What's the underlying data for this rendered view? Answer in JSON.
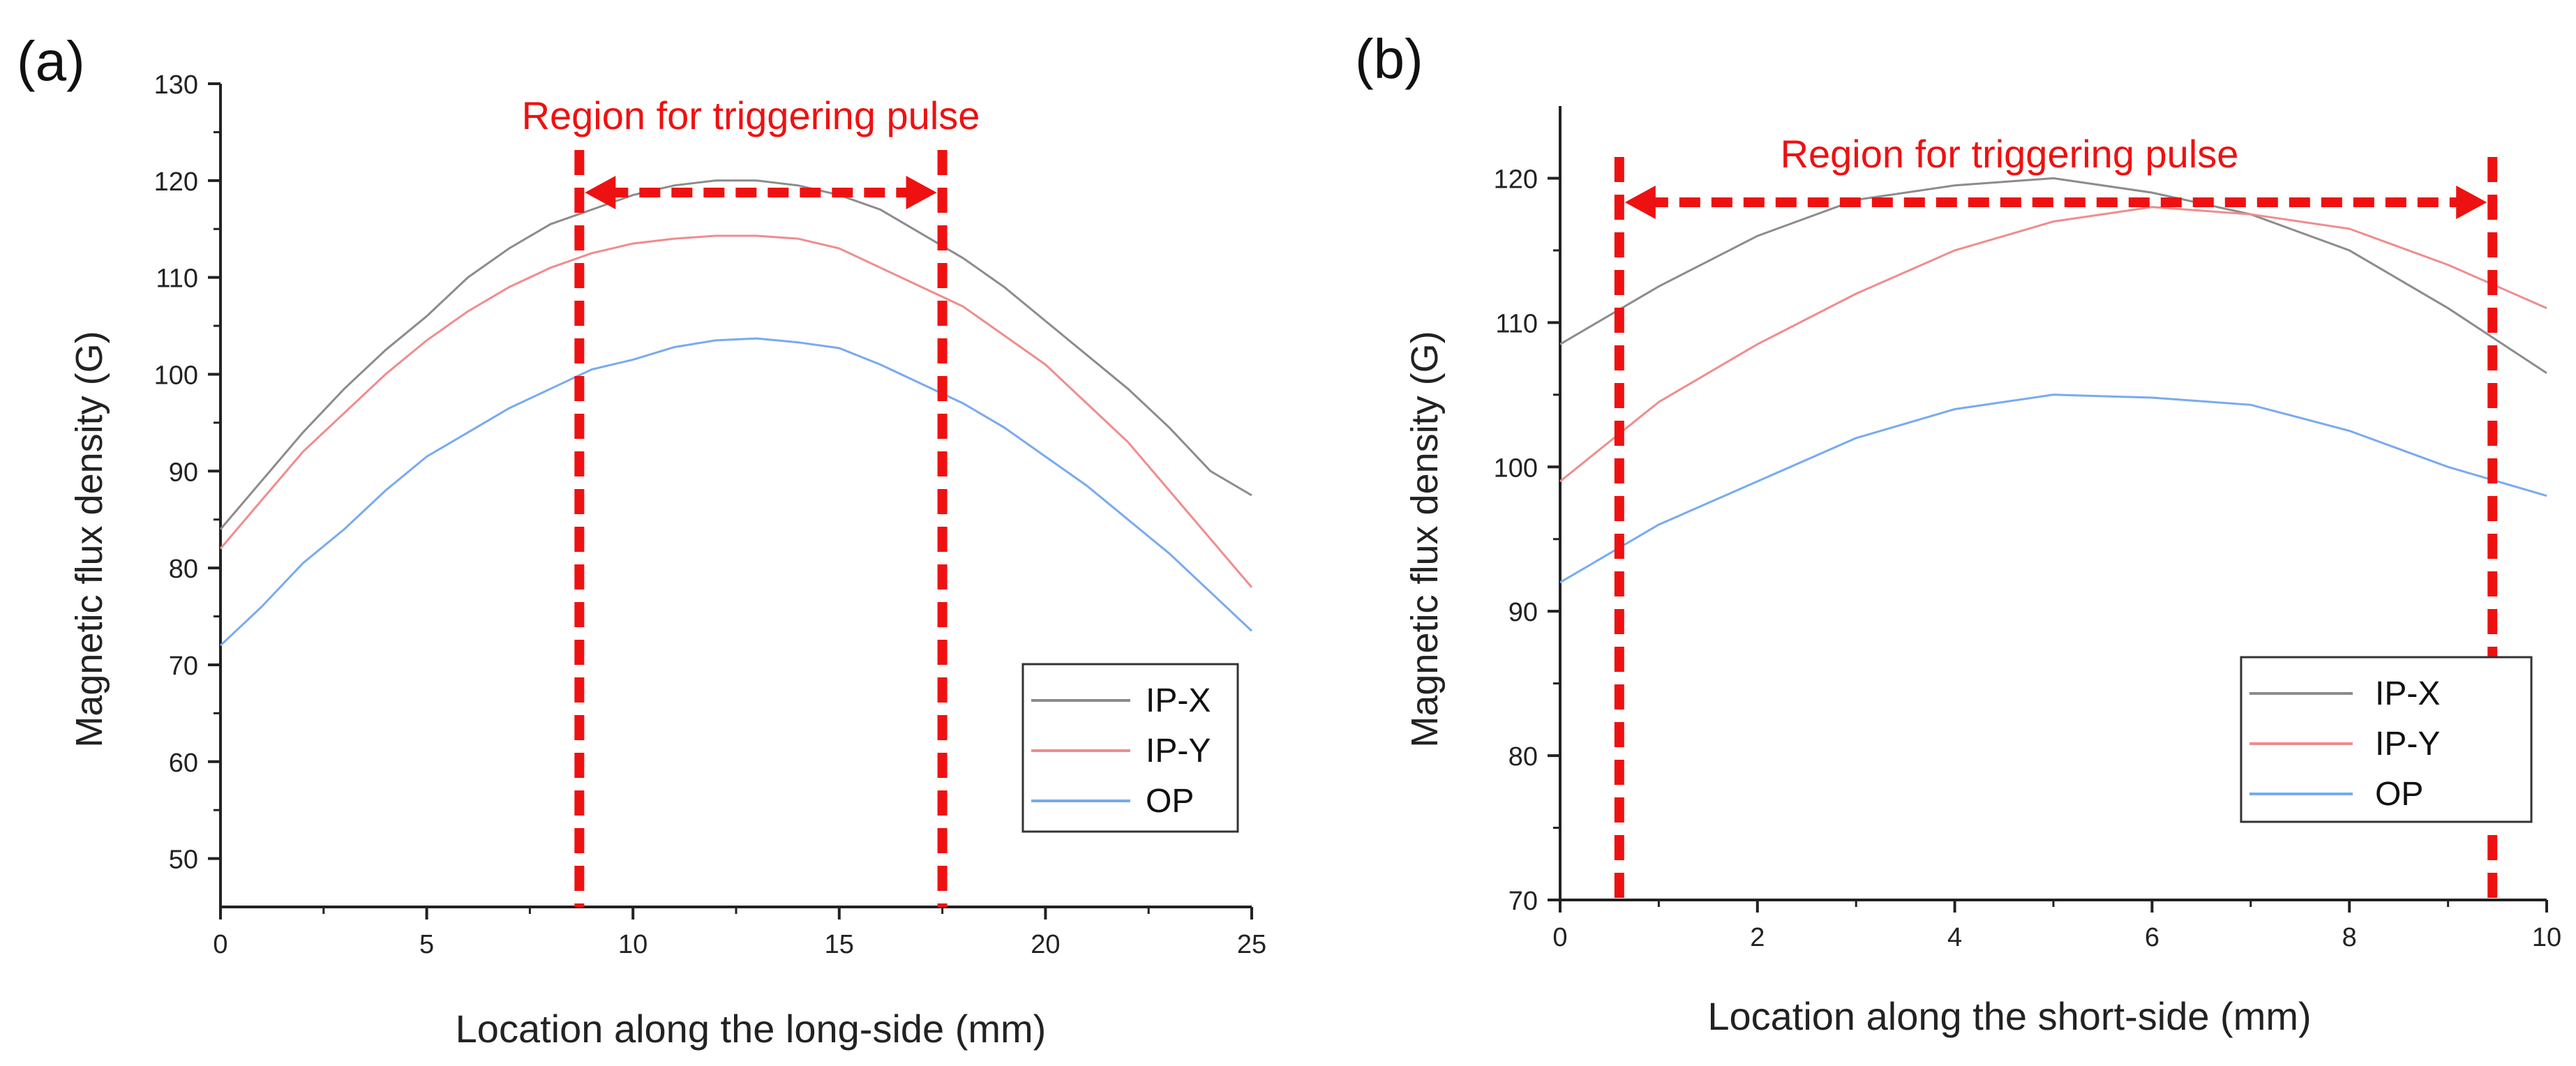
{
  "colors": {
    "ip_x": "#8c8c8c",
    "ip_y": "#f08c8c",
    "op": "#78aaf0",
    "region": "#ee1111",
    "axis": "#222222"
  },
  "chart_data": [
    {
      "panel_label": "(a)",
      "type": "line",
      "xlabel": "Location along the long-side (mm)",
      "ylabel": "Magnetic flux density (G)",
      "xlim": [
        0,
        25
      ],
      "ylim": [
        45,
        130
      ],
      "x_ticks": [
        0,
        5,
        10,
        15,
        20,
        25
      ],
      "y_ticks": [
        50,
        60,
        70,
        80,
        90,
        100,
        110,
        120,
        130
      ],
      "grid": false,
      "legend_position": "bottom-right",
      "region": {
        "label": "Region for triggering pulse",
        "x_start": 8.7,
        "x_end": 17.5
      },
      "series": [
        {
          "name": "IP-X",
          "x": [
            0,
            1,
            2,
            3,
            4,
            5,
            6,
            7,
            8,
            9,
            10,
            11,
            12,
            13,
            14,
            15,
            16,
            17,
            18,
            19,
            20,
            21,
            22,
            23,
            24,
            25
          ],
          "values": [
            84,
            89,
            94,
            98.5,
            102.5,
            106,
            110,
            113,
            115.5,
            117,
            118.5,
            119.5,
            120,
            120,
            119.5,
            118.5,
            117,
            114.5,
            112,
            109,
            105.5,
            102,
            98.5,
            94.5,
            90,
            87.5
          ]
        },
        {
          "name": "IP-Y",
          "x": [
            0,
            1,
            2,
            3,
            4,
            5,
            6,
            7,
            8,
            9,
            10,
            11,
            12,
            13,
            14,
            15,
            16,
            17,
            18,
            19,
            20,
            21,
            22,
            23,
            24,
            25
          ],
          "values": [
            82,
            87,
            92,
            96,
            100,
            103.5,
            106.5,
            109,
            111,
            112.5,
            113.5,
            114,
            114.3,
            114.3,
            114,
            113,
            111,
            109,
            107,
            104,
            101,
            97,
            93,
            88,
            83,
            78
          ]
        },
        {
          "name": "OP",
          "x": [
            0,
            1,
            2,
            3,
            4,
            5,
            6,
            7,
            8,
            9,
            10,
            11,
            12,
            13,
            14,
            15,
            16,
            17,
            18,
            19,
            20,
            21,
            22,
            23,
            24,
            25
          ],
          "values": [
            72,
            76,
            80.5,
            84,
            88,
            91.5,
            94,
            96.5,
            98.5,
            100.5,
            101.5,
            102.8,
            103.5,
            103.7,
            103.3,
            102.7,
            101,
            99,
            97,
            94.5,
            91.5,
            88.5,
            85,
            81.5,
            77.5,
            73.5
          ]
        }
      ]
    },
    {
      "panel_label": "(b)",
      "type": "line",
      "xlabel": "Location along the short-side (mm)",
      "ylabel": "Magnetic flux density (G)",
      "xlim": [
        0,
        10
      ],
      "ylim": [
        70,
        125
      ],
      "x_ticks": [
        0,
        2,
        4,
        6,
        8,
        10
      ],
      "y_ticks": [
        70,
        80,
        90,
        100,
        110,
        120
      ],
      "grid": false,
      "legend_position": "bottom-right",
      "region": {
        "label": "Region for triggering pulse",
        "x_start": 0.6,
        "x_end": 9.45
      },
      "series": [
        {
          "name": "IP-X",
          "x": [
            0,
            1,
            2,
            3,
            4,
            5,
            6,
            7,
            8,
            9,
            10
          ],
          "values": [
            108.5,
            112.5,
            116,
            118.5,
            119.5,
            120,
            119,
            117.5,
            115,
            111,
            106.5
          ]
        },
        {
          "name": "IP-Y",
          "x": [
            0,
            1,
            2,
            3,
            4,
            5,
            6,
            7,
            8,
            9,
            10
          ],
          "values": [
            99,
            104.5,
            108.5,
            112,
            115,
            117,
            118,
            117.5,
            116.5,
            114,
            111
          ]
        },
        {
          "name": "OP",
          "x": [
            0,
            1,
            2,
            3,
            4,
            5,
            6,
            7,
            8,
            9,
            10
          ],
          "values": [
            92,
            96,
            99,
            102,
            104,
            105,
            104.8,
            104.3,
            102.5,
            100,
            98
          ]
        }
      ]
    }
  ]
}
